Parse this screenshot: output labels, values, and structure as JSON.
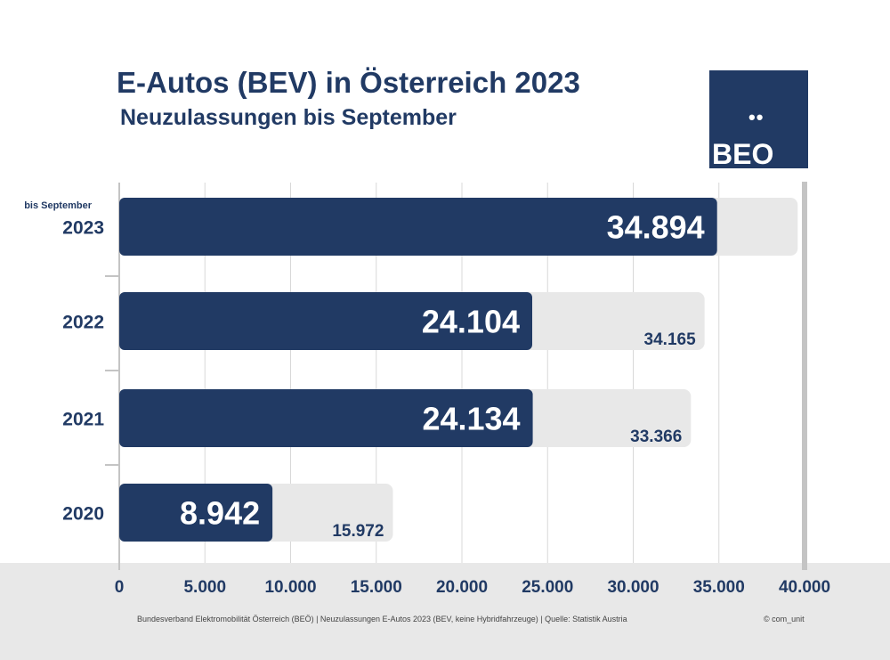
{
  "header": {
    "title": "E-Autos (BEV) in Österreich 2023",
    "subtitle": "Neuzulassungen bis September"
  },
  "logo": {
    "text": "BEO",
    "dots": "••"
  },
  "footer": {
    "source": "Bundesverband Elektromobilität Österreich (BEÖ) | Neuzulassungen E-Autos 2023 (BEV, keine Hybridfahrzeuge) | Quelle: Statistik Austria",
    "copyright": "© com_unit"
  },
  "colors": {
    "bar": "#213a64",
    "background_bar": "#e8e8e8",
    "text": "#213a64"
  },
  "chart_data": {
    "type": "bar",
    "orientation": "horizontal",
    "title": "E-Autos (BEV) in Österreich 2023",
    "subtitle": "Neuzulassungen bis September",
    "categories": [
      "2023",
      "2022",
      "2021",
      "2020"
    ],
    "category_note": "bis September",
    "series": [
      {
        "values": [
          34894,
          24104,
          24134,
          8942
        ],
        "labels": [
          "34.894",
          "24.104",
          "24.134",
          "8.942"
        ],
        "color": "#213a64"
      },
      {
        "values": [
          39600,
          34165,
          33366,
          15972
        ],
        "labels": [
          "",
          "34.165",
          "33.366",
          "15.972"
        ],
        "color": "#e8e8e8"
      }
    ],
    "xlim": [
      0,
      40000
    ],
    "xticks": [
      0,
      5000,
      10000,
      15000,
      20000,
      25000,
      30000,
      35000,
      40000
    ],
    "xtick_labels": [
      "0",
      "5.000",
      "10.000",
      "15.000",
      "20.000",
      "25.000",
      "30.000",
      "35.000",
      "40.000"
    ],
    "grid": true
  }
}
